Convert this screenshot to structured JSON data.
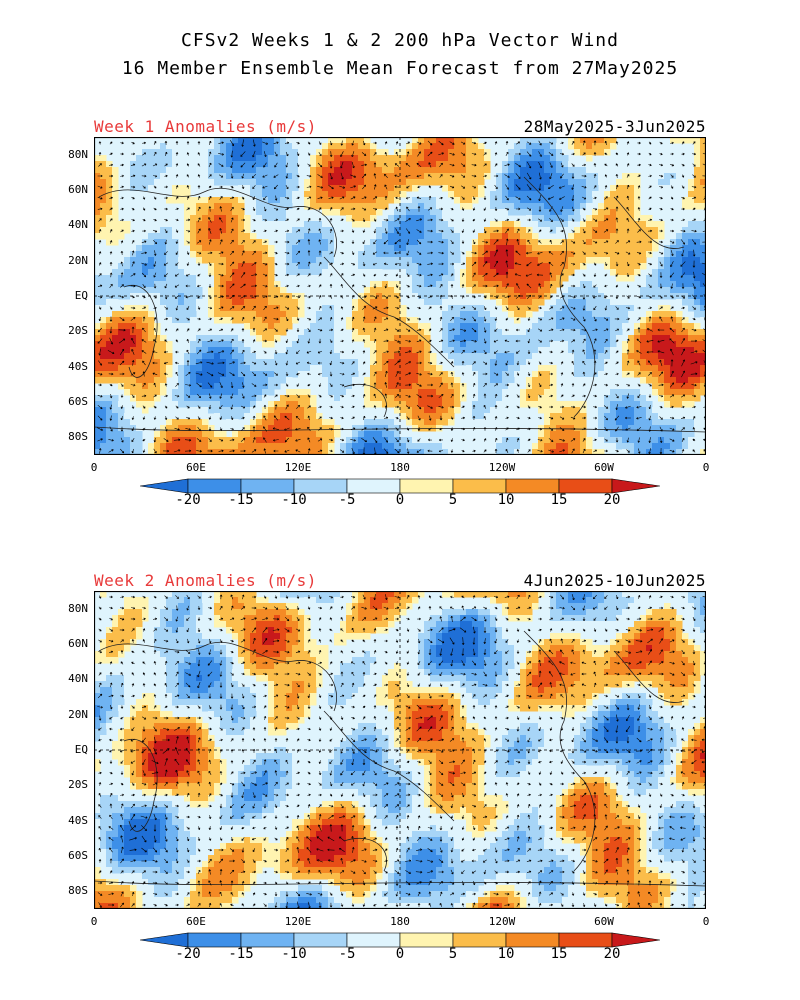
{
  "title": {
    "line1": "CFSv2 Weeks 1 & 2 200 hPa Vector Wind",
    "line2": "16 Member Ensemble Mean Forecast from 27May2025"
  },
  "axes": {
    "lat_labels": [
      "80N",
      "60N",
      "40N",
      "20N",
      "EQ",
      "20S",
      "40S",
      "60S",
      "80S"
    ],
    "lon_labels": [
      "0",
      "60E",
      "120E",
      "180",
      "120W",
      "60W",
      "0"
    ]
  },
  "colorbar": {
    "labels": [
      "-20",
      "-15",
      "-10",
      "-5",
      "0",
      "5",
      "10",
      "15",
      "20"
    ],
    "colors": [
      "#1f6fd6",
      "#3d8fe8",
      "#6fb3f2",
      "#a7d5f7",
      "#dff4fd",
      "#fff4b0",
      "#fbbd4a",
      "#f48a25",
      "#e84e17",
      "#c8191b"
    ]
  },
  "panels": [
    {
      "label": "Week 1 Anomalies (m/s)",
      "date_range": "28May2025-3Jun2025"
    },
    {
      "label": "Week 2 Anomalies (m/s)",
      "date_range": "4Jun2025-10Jun2025"
    }
  ]
}
